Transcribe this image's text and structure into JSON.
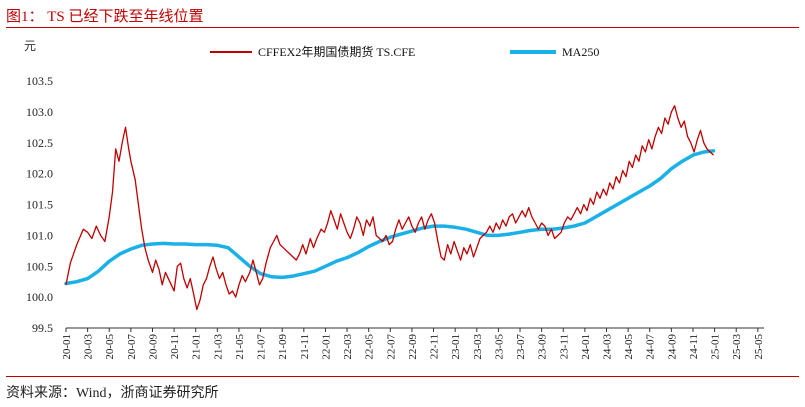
{
  "title": "图1： TS 已经下跌至年线位置",
  "source": "资料来源：Wind，浙商证券研究所",
  "colors": {
    "accent": "#c00000",
    "series1": "#c00000",
    "series2": "#1ab0e8",
    "axis": "#333333"
  },
  "chart_data": {
    "type": "line",
    "ylabel": "元",
    "ylim": [
      99.5,
      103.5
    ],
    "yticks": [
      "99.5",
      "100.0",
      "100.5",
      "101.0",
      "101.5",
      "102.0",
      "102.5",
      "103.0",
      "103.5"
    ],
    "x_categories": [
      "20-01",
      "20-03",
      "20-05",
      "20-07",
      "20-09",
      "20-11",
      "21-01",
      "21-03",
      "21-05",
      "21-07",
      "21-09",
      "21-11",
      "22-01",
      "22-03",
      "22-05",
      "22-07",
      "22-09",
      "22-11",
      "23-01",
      "23-03",
      "23-05",
      "23-07",
      "23-09",
      "23-11",
      "24-01",
      "24-03",
      "24-05",
      "24-07",
      "24-09",
      "24-11",
      "25-01",
      "25-03",
      "25-05"
    ],
    "legend_position": "top",
    "series": [
      {
        "name": "CFFEX2年期国债期货 TS.CFE",
        "color": "#c00000",
        "points": [
          [
            0,
            100.2
          ],
          [
            0.2,
            100.55
          ],
          [
            0.5,
            100.85
          ],
          [
            0.8,
            101.1
          ],
          [
            1.0,
            101.05
          ],
          [
            1.2,
            100.95
          ],
          [
            1.4,
            101.15
          ],
          [
            1.6,
            101.0
          ],
          [
            1.8,
            100.9
          ],
          [
            2.0,
            101.3
          ],
          [
            2.15,
            101.7
          ],
          [
            2.3,
            102.4
          ],
          [
            2.45,
            102.2
          ],
          [
            2.6,
            102.5
          ],
          [
            2.75,
            102.75
          ],
          [
            2.9,
            102.4
          ],
          [
            3.0,
            102.2
          ],
          [
            3.2,
            101.9
          ],
          [
            3.35,
            101.5
          ],
          [
            3.5,
            101.1
          ],
          [
            3.65,
            100.8
          ],
          [
            3.8,
            100.6
          ],
          [
            4.0,
            100.4
          ],
          [
            4.15,
            100.6
          ],
          [
            4.3,
            100.45
          ],
          [
            4.45,
            100.2
          ],
          [
            4.6,
            100.4
          ],
          [
            4.8,
            100.25
          ],
          [
            5.0,
            100.1
          ],
          [
            5.15,
            100.5
          ],
          [
            5.3,
            100.55
          ],
          [
            5.45,
            100.3
          ],
          [
            5.6,
            100.15
          ],
          [
            5.75,
            100.3
          ],
          [
            5.9,
            100.05
          ],
          [
            6.05,
            99.8
          ],
          [
            6.2,
            99.95
          ],
          [
            6.35,
            100.2
          ],
          [
            6.5,
            100.3
          ],
          [
            6.65,
            100.5
          ],
          [
            6.8,
            100.65
          ],
          [
            6.95,
            100.45
          ],
          [
            7.1,
            100.3
          ],
          [
            7.25,
            100.4
          ],
          [
            7.4,
            100.2
          ],
          [
            7.55,
            100.05
          ],
          [
            7.7,
            100.1
          ],
          [
            7.85,
            100.0
          ],
          [
            8.0,
            100.2
          ],
          [
            8.15,
            100.35
          ],
          [
            8.3,
            100.25
          ],
          [
            8.5,
            100.4
          ],
          [
            8.65,
            100.6
          ],
          [
            8.8,
            100.4
          ],
          [
            8.95,
            100.2
          ],
          [
            9.1,
            100.3
          ],
          [
            9.25,
            100.55
          ],
          [
            9.45,
            100.8
          ],
          [
            9.6,
            100.9
          ],
          [
            9.75,
            101.0
          ],
          [
            9.9,
            100.85
          ],
          [
            10.05,
            100.8
          ],
          [
            10.2,
            100.75
          ],
          [
            10.35,
            100.7
          ],
          [
            10.5,
            100.65
          ],
          [
            10.65,
            100.6
          ],
          [
            10.8,
            100.7
          ],
          [
            10.95,
            100.85
          ],
          [
            11.1,
            100.7
          ],
          [
            11.3,
            100.95
          ],
          [
            11.45,
            100.8
          ],
          [
            11.6,
            100.95
          ],
          [
            11.8,
            101.1
          ],
          [
            11.95,
            101.05
          ],
          [
            12.1,
            101.2
          ],
          [
            12.25,
            101.4
          ],
          [
            12.4,
            101.25
          ],
          [
            12.55,
            101.1
          ],
          [
            12.7,
            101.35
          ],
          [
            12.85,
            101.2
          ],
          [
            13.0,
            101.05
          ],
          [
            13.15,
            100.95
          ],
          [
            13.3,
            101.1
          ],
          [
            13.45,
            101.3
          ],
          [
            13.6,
            101.2
          ],
          [
            13.75,
            101.0
          ],
          [
            13.9,
            101.25
          ],
          [
            14.05,
            101.15
          ],
          [
            14.2,
            101.3
          ],
          [
            14.35,
            101.0
          ],
          [
            14.5,
            100.95
          ],
          [
            14.65,
            100.9
          ],
          [
            14.8,
            101.0
          ],
          [
            14.95,
            100.85
          ],
          [
            15.1,
            100.9
          ],
          [
            15.25,
            101.1
          ],
          [
            15.4,
            101.25
          ],
          [
            15.55,
            101.1
          ],
          [
            15.7,
            101.2
          ],
          [
            15.85,
            101.3
          ],
          [
            16.0,
            101.15
          ],
          [
            16.15,
            101.05
          ],
          [
            16.3,
            101.2
          ],
          [
            16.45,
            101.3
          ],
          [
            16.6,
            101.1
          ],
          [
            16.75,
            101.25
          ],
          [
            16.9,
            101.35
          ],
          [
            17.05,
            101.2
          ],
          [
            17.2,
            100.9
          ],
          [
            17.35,
            100.65
          ],
          [
            17.5,
            100.6
          ],
          [
            17.65,
            100.85
          ],
          [
            17.8,
            100.7
          ],
          [
            17.95,
            100.9
          ],
          [
            18.1,
            100.75
          ],
          [
            18.25,
            100.6
          ],
          [
            18.4,
            100.8
          ],
          [
            18.55,
            100.7
          ],
          [
            18.7,
            100.85
          ],
          [
            18.85,
            100.65
          ],
          [
            19.0,
            100.8
          ],
          [
            19.15,
            100.95
          ],
          [
            19.3,
            101.0
          ],
          [
            19.45,
            101.05
          ],
          [
            19.6,
            101.15
          ],
          [
            19.75,
            101.05
          ],
          [
            19.9,
            101.2
          ],
          [
            20.05,
            101.1
          ],
          [
            20.2,
            101.25
          ],
          [
            20.35,
            101.15
          ],
          [
            20.5,
            101.3
          ],
          [
            20.65,
            101.35
          ],
          [
            20.8,
            101.2
          ],
          [
            20.95,
            101.3
          ],
          [
            21.1,
            101.4
          ],
          [
            21.25,
            101.3
          ],
          [
            21.4,
            101.45
          ],
          [
            21.55,
            101.3
          ],
          [
            21.7,
            101.2
          ],
          [
            21.85,
            101.1
          ],
          [
            22.0,
            101.2
          ],
          [
            22.15,
            101.15
          ],
          [
            22.3,
            101.0
          ],
          [
            22.45,
            101.1
          ],
          [
            22.6,
            100.95
          ],
          [
            22.75,
            101.0
          ],
          [
            22.9,
            101.05
          ],
          [
            23.05,
            101.2
          ],
          [
            23.2,
            101.3
          ],
          [
            23.35,
            101.25
          ],
          [
            23.5,
            101.35
          ],
          [
            23.65,
            101.45
          ],
          [
            23.8,
            101.35
          ],
          [
            23.95,
            101.5
          ],
          [
            24.1,
            101.4
          ],
          [
            24.25,
            101.6
          ],
          [
            24.4,
            101.5
          ],
          [
            24.55,
            101.7
          ],
          [
            24.7,
            101.6
          ],
          [
            24.85,
            101.75
          ],
          [
            25.0,
            101.65
          ],
          [
            25.15,
            101.85
          ],
          [
            25.3,
            101.75
          ],
          [
            25.45,
            101.95
          ],
          [
            25.6,
            101.85
          ],
          [
            25.75,
            102.05
          ],
          [
            25.9,
            101.95
          ],
          [
            26.05,
            102.2
          ],
          [
            26.2,
            102.1
          ],
          [
            26.35,
            102.3
          ],
          [
            26.5,
            102.2
          ],
          [
            26.65,
            102.45
          ],
          [
            26.8,
            102.35
          ],
          [
            26.95,
            102.55
          ],
          [
            27.1,
            102.4
          ],
          [
            27.25,
            102.6
          ],
          [
            27.4,
            102.75
          ],
          [
            27.55,
            102.65
          ],
          [
            27.7,
            102.9
          ],
          [
            27.85,
            102.8
          ],
          [
            28.0,
            103.0
          ],
          [
            28.15,
            103.1
          ],
          [
            28.3,
            102.9
          ],
          [
            28.45,
            102.75
          ],
          [
            28.6,
            102.85
          ],
          [
            28.75,
            102.6
          ],
          [
            28.9,
            102.5
          ],
          [
            29.05,
            102.35
          ],
          [
            29.2,
            102.55
          ],
          [
            29.35,
            102.7
          ],
          [
            29.5,
            102.5
          ],
          [
            29.65,
            102.4
          ],
          [
            29.8,
            102.35
          ],
          [
            29.95,
            102.3
          ]
        ]
      },
      {
        "name": "MA250",
        "color": "#1ab0e8",
        "points": [
          [
            0,
            100.22
          ],
          [
            0.5,
            100.25
          ],
          [
            1.0,
            100.3
          ],
          [
            1.5,
            100.42
          ],
          [
            2.0,
            100.58
          ],
          [
            2.5,
            100.7
          ],
          [
            3.0,
            100.78
          ],
          [
            3.5,
            100.84
          ],
          [
            4.0,
            100.86
          ],
          [
            4.5,
            100.87
          ],
          [
            5.0,
            100.86
          ],
          [
            5.5,
            100.86
          ],
          [
            6.0,
            100.85
          ],
          [
            6.5,
            100.85
          ],
          [
            7.0,
            100.84
          ],
          [
            7.5,
            100.8
          ],
          [
            8.0,
            100.65
          ],
          [
            8.5,
            100.5
          ],
          [
            9.0,
            100.38
          ],
          [
            9.5,
            100.33
          ],
          [
            10.0,
            100.32
          ],
          [
            10.5,
            100.34
          ],
          [
            11.0,
            100.38
          ],
          [
            11.5,
            100.42
          ],
          [
            12.0,
            100.5
          ],
          [
            12.5,
            100.58
          ],
          [
            13.0,
            100.64
          ],
          [
            13.5,
            100.72
          ],
          [
            14.0,
            100.82
          ],
          [
            14.5,
            100.9
          ],
          [
            15.0,
            100.97
          ],
          [
            15.5,
            101.02
          ],
          [
            16.0,
            101.07
          ],
          [
            16.5,
            101.12
          ],
          [
            17.0,
            101.15
          ],
          [
            17.5,
            101.15
          ],
          [
            18.0,
            101.13
          ],
          [
            18.5,
            101.1
          ],
          [
            19.0,
            101.05
          ],
          [
            19.5,
            101.0
          ],
          [
            20.0,
            101.0
          ],
          [
            20.5,
            101.02
          ],
          [
            21.0,
            101.05
          ],
          [
            21.5,
            101.08
          ],
          [
            22.0,
            101.1
          ],
          [
            22.5,
            101.1
          ],
          [
            23.0,
            101.12
          ],
          [
            23.5,
            101.15
          ],
          [
            24.0,
            101.2
          ],
          [
            24.5,
            101.3
          ],
          [
            25.0,
            101.4
          ],
          [
            25.5,
            101.5
          ],
          [
            26.0,
            101.6
          ],
          [
            26.5,
            101.7
          ],
          [
            27.0,
            101.8
          ],
          [
            27.5,
            101.92
          ],
          [
            28.0,
            102.08
          ],
          [
            28.5,
            102.2
          ],
          [
            29.0,
            102.3
          ],
          [
            29.5,
            102.35
          ],
          [
            29.95,
            102.37
          ]
        ]
      }
    ]
  }
}
